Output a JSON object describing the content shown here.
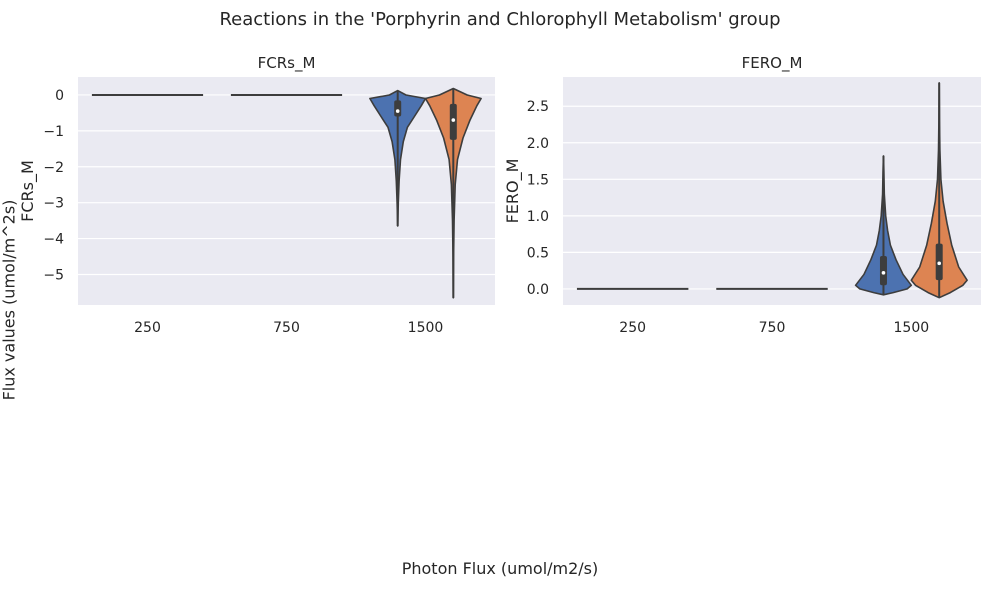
{
  "figure": {
    "title": "Reactions in the 'Porphyrin and Chlorophyll Metabolism' group",
    "xlabel": "Photon Flux (umol/m2/s)",
    "ylabel": "Flux values (umol/m^2s)"
  },
  "colors": {
    "background": "#eaeaf2",
    "grid": "#ffffff",
    "series_a": "#4c72b0",
    "series_b": "#dd8452",
    "outline": "#3d3d3d"
  },
  "chart_data": [
    {
      "type": "violin",
      "title": "FCRs_M",
      "ylabel": "FCRs_M",
      "categories": [
        "250",
        "750",
        "1500"
      ],
      "ylim": [
        -5.85,
        0.5
      ],
      "yticks": [
        0,
        -1,
        -2,
        -3,
        -4,
        -5
      ],
      "ytick_labels": [
        "0",
        "−1",
        "−2",
        "−3",
        "−4",
        "−5"
      ],
      "grid": true,
      "series": [
        {
          "category": "250",
          "min": 0,
          "max": 0,
          "q1": 0,
          "median": 0,
          "q3": 0
        },
        {
          "category": "750",
          "min": 0,
          "max": 0,
          "q1": 0,
          "median": 0,
          "q3": 0
        },
        {
          "category": "1500",
          "color": "series_a",
          "min": -3.65,
          "max": 0.12,
          "q1": -0.6,
          "median": -0.45,
          "q3": -0.15,
          "density": [
            [
              0.12,
              0.0
            ],
            [
              0.0,
              0.3
            ],
            [
              -0.1,
              1.0
            ],
            [
              -0.3,
              0.85
            ],
            [
              -0.6,
              0.6
            ],
            [
              -0.9,
              0.35
            ],
            [
              -1.3,
              0.2
            ],
            [
              -1.8,
              0.1
            ],
            [
              -2.4,
              0.05
            ],
            [
              -3.0,
              0.02
            ],
            [
              -3.65,
              0.0
            ]
          ]
        },
        {
          "category": "1500",
          "color": "series_b",
          "min": -5.65,
          "max": 0.18,
          "q1": -1.25,
          "median": -0.7,
          "q3": -0.25,
          "density": [
            [
              0.18,
              0.0
            ],
            [
              0.0,
              0.5
            ],
            [
              -0.1,
              1.0
            ],
            [
              -0.3,
              0.85
            ],
            [
              -0.7,
              0.6
            ],
            [
              -1.2,
              0.35
            ],
            [
              -1.8,
              0.15
            ],
            [
              -2.5,
              0.07
            ],
            [
              -3.5,
              0.03
            ],
            [
              -4.5,
              0.012
            ],
            [
              -5.65,
              0.0
            ]
          ]
        }
      ]
    },
    {
      "type": "violin",
      "title": "FERO_M",
      "ylabel": "FERO_M",
      "categories": [
        "250",
        "750",
        "1500"
      ],
      "ylim": [
        -0.22,
        2.9
      ],
      "yticks": [
        0.0,
        0.5,
        1.0,
        1.5,
        2.0,
        2.5
      ],
      "ytick_labels": [
        "0.0",
        "0.5",
        "1.0",
        "1.5",
        "2.0",
        "2.5"
      ],
      "grid": true,
      "series": [
        {
          "category": "250",
          "min": 0,
          "max": 0,
          "q1": 0,
          "median": 0,
          "q3": 0
        },
        {
          "category": "750",
          "min": 0,
          "max": 0,
          "q1": 0,
          "median": 0,
          "q3": 0
        },
        {
          "category": "1500",
          "color": "series_a",
          "min": -0.08,
          "max": 1.82,
          "q1": 0.05,
          "median": 0.22,
          "q3": 0.45,
          "density": [
            [
              -0.08,
              0.0
            ],
            [
              -0.05,
              0.35
            ],
            [
              0.0,
              0.85
            ],
            [
              0.05,
              1.0
            ],
            [
              0.2,
              0.7
            ],
            [
              0.4,
              0.45
            ],
            [
              0.6,
              0.25
            ],
            [
              0.8,
              0.15
            ],
            [
              1.0,
              0.08
            ],
            [
              1.3,
              0.03
            ],
            [
              1.6,
              0.015
            ],
            [
              1.82,
              0.0
            ]
          ]
        },
        {
          "category": "1500",
          "color": "series_b",
          "min": -0.12,
          "max": 2.82,
          "q1": 0.12,
          "median": 0.35,
          "q3": 0.62,
          "density": [
            [
              -0.12,
              0.0
            ],
            [
              -0.05,
              0.4
            ],
            [
              0.05,
              0.85
            ],
            [
              0.12,
              1.0
            ],
            [
              0.3,
              0.7
            ],
            [
              0.6,
              0.45
            ],
            [
              0.9,
              0.28
            ],
            [
              1.2,
              0.14
            ],
            [
              1.5,
              0.06
            ],
            [
              1.9,
              0.025
            ],
            [
              2.3,
              0.012
            ],
            [
              2.82,
              0.0
            ]
          ]
        }
      ]
    }
  ]
}
